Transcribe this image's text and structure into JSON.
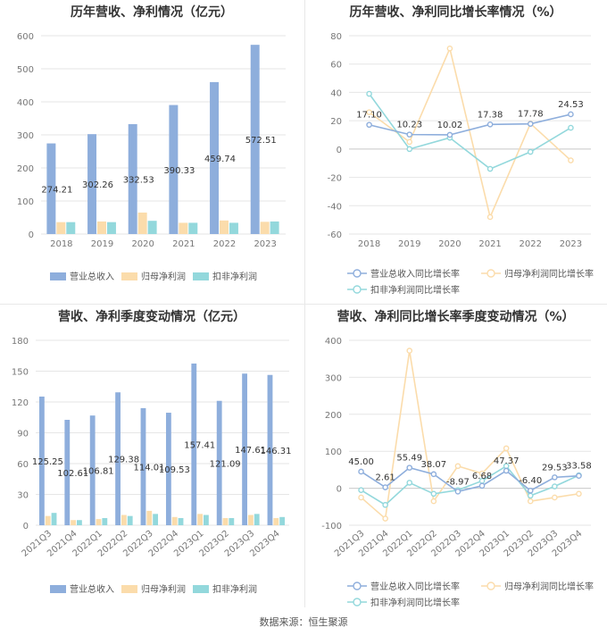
{
  "source_note": "数据来源：恒生聚源",
  "colors": {
    "revenue": "#8eaedc",
    "net_profit": "#fbdcab",
    "deducted_profit": "#93d8dc",
    "grid": "#e6e6e6",
    "axis_text": "#777777",
    "title": "#333333"
  },
  "chart_data": [
    {
      "id": "annual-amount",
      "type": "bar",
      "title": "历年营收、净利情况（亿元）",
      "categories": [
        "2018",
        "2019",
        "2020",
        "2021",
        "2022",
        "2023"
      ],
      "ylim": [
        0,
        600
      ],
      "yticks": [
        0,
        100,
        200,
        300,
        400,
        500,
        600
      ],
      "series": [
        {
          "name": "营业总收入",
          "values": [
            274.21,
            302.26,
            332.53,
            390.33,
            459.74,
            572.51
          ],
          "labels": [
            "274.21",
            "302.26",
            "332.53",
            "390.33",
            "459.74",
            "572.51"
          ]
        },
        {
          "name": "归母净利润",
          "values": [
            36,
            38,
            65,
            34,
            41,
            37
          ]
        },
        {
          "name": "扣非净利润",
          "values": [
            36,
            36,
            40,
            34,
            34,
            38
          ]
        }
      ],
      "legend": "bottom"
    },
    {
      "id": "annual-growth",
      "type": "line",
      "title": "历年营收、净利同比增长率情况（%）",
      "categories": [
        "2018",
        "2019",
        "2020",
        "2021",
        "2022",
        "2023"
      ],
      "ylim": [
        -60,
        80
      ],
      "yticks": [
        -60,
        -40,
        -20,
        0,
        20,
        40,
        60,
        80
      ],
      "series": [
        {
          "name": "营业总收入同比增长率",
          "values": [
            17.1,
            10.23,
            10.02,
            17.38,
            17.78,
            24.53
          ],
          "labels": [
            "17.10",
            "10.23",
            "10.02",
            "17.38",
            "17.78",
            "24.53"
          ]
        },
        {
          "name": "归母净利润同比增长率",
          "values": [
            26,
            5,
            71,
            -48,
            18,
            -8
          ]
        },
        {
          "name": "扣非净利润同比增长率",
          "values": [
            39,
            0,
            8,
            -14,
            -2,
            15
          ]
        }
      ],
      "legend": "bottom"
    },
    {
      "id": "quarterly-amount",
      "type": "bar",
      "title": "营收、净利季度变动情况（亿元）",
      "categories": [
        "2021Q3",
        "2021Q4",
        "2022Q1",
        "2022Q2",
        "2022Q3",
        "2022Q4",
        "2023Q1",
        "2023Q2",
        "2023Q3",
        "2023Q4"
      ],
      "ylim": [
        0,
        180
      ],
      "yticks": [
        0,
        30,
        60,
        90,
        120,
        150,
        180
      ],
      "series": [
        {
          "name": "营业总收入",
          "values": [
            125.25,
            102.61,
            106.81,
            129.38,
            114.01,
            109.53,
            157.41,
            121.09,
            147.61,
            146.31
          ],
          "labels": [
            "125.25",
            "102.61",
            "106.81",
            "129.38",
            "114.01",
            "109.53",
            "157.41",
            "121.09",
            "147.61",
            "146.31"
          ]
        },
        {
          "name": "归母净利润",
          "values": [
            9,
            5,
            6,
            10,
            14,
            8,
            11,
            7,
            10,
            7
          ]
        },
        {
          "name": "扣非净利润",
          "values": [
            12,
            5,
            7,
            9,
            11,
            7,
            10,
            7,
            11,
            8
          ]
        }
      ],
      "legend": "bottom"
    },
    {
      "id": "quarterly-growth",
      "type": "line",
      "title": "营收、净利同比增长率季度变动情况（%）",
      "categories": [
        "2021Q3",
        "2021Q4",
        "2022Q1",
        "2022Q2",
        "2022Q3",
        "2022Q4",
        "2023Q1",
        "2023Q2",
        "2023Q3",
        "2023Q4"
      ],
      "ylim": [
        -100,
        400
      ],
      "yticks": [
        -100,
        0,
        100,
        200,
        300,
        400
      ],
      "series": [
        {
          "name": "营业总收入同比增长率",
          "values": [
            45.0,
            2.61,
            55.49,
            38.07,
            -8.97,
            6.68,
            47.37,
            -6.4,
            29.53,
            33.58
          ],
          "labels": [
            "45.00",
            "2.61",
            "55.49",
            "38.07",
            "-8.97",
            "6.68",
            "47.37",
            "-6.40",
            "29.53",
            "33.58"
          ]
        },
        {
          "name": "归母净利润同比增长率",
          "values": [
            -25,
            -82,
            372,
            -35,
            60,
            40,
            108,
            -35,
            -25,
            -15
          ]
        },
        {
          "name": "扣非净利润同比增长率",
          "values": [
            -5,
            -45,
            15,
            -15,
            -5,
            20,
            60,
            -20,
            5,
            35
          ]
        }
      ],
      "legend": "bottom"
    }
  ]
}
